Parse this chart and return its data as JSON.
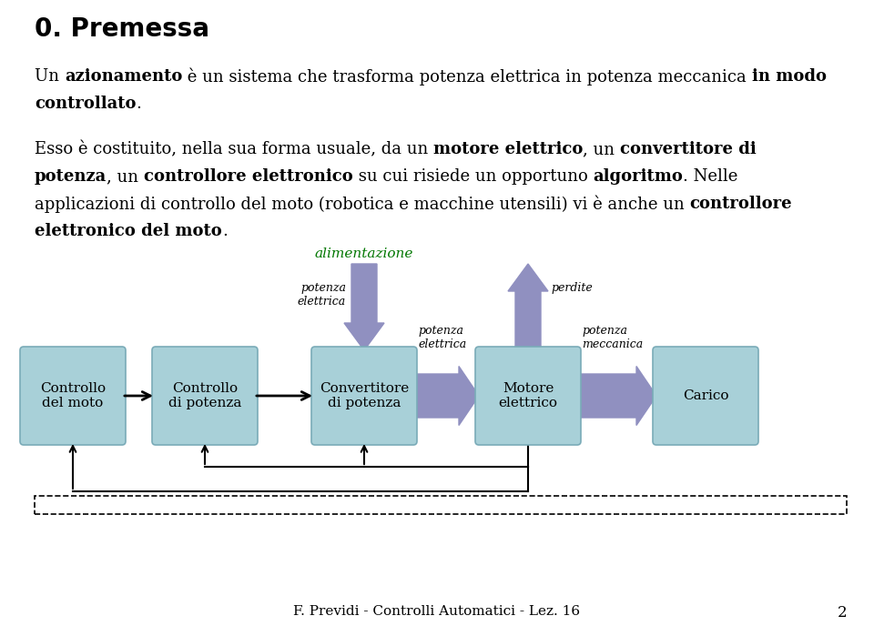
{
  "title": "0. Premessa",
  "box_color": "#a8d0d8",
  "box_edge_color": "#7aabb8",
  "arrow_color_purple": "#9090c0",
  "alimentazione_color": "#007700",
  "box_labels": [
    "Controllo\ndel moto",
    "Controllo\ndi potenza",
    "Convertitore\ndi potenza",
    "Motore\nelettrico",
    "Carico"
  ],
  "footer": "F. Previdi - Controlli Automatici - Lez. 16",
  "page_number": "2",
  "background_color": "#ffffff",
  "font_size_title": 20,
  "font_size_body": 13,
  "font_size_box": 11,
  "font_size_label": 9,
  "font_size_footer": 11
}
